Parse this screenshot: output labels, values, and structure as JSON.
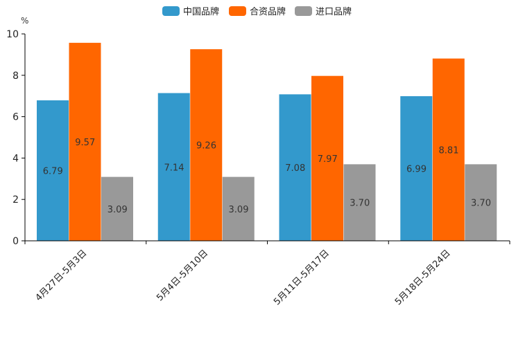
{
  "chart_data": {
    "type": "bar",
    "title": "",
    "xlabel": "",
    "ylabel": "%",
    "ylim": [
      0,
      10
    ],
    "yticks": [
      0,
      2,
      4,
      6,
      8,
      10
    ],
    "grid": false,
    "legend_position": "top-center",
    "categories": [
      "4月27日-5月3日",
      "5月4日-5月10日",
      "5月11日-5月17日",
      "5月18日-5月24日"
    ],
    "series": [
      {
        "name": "中国品牌",
        "color": "#3399cc",
        "values": [
          6.79,
          7.14,
          7.08,
          6.99
        ]
      },
      {
        "name": "合资品牌",
        "color": "#ff6600",
        "values": [
          9.57,
          9.26,
          7.97,
          8.81
        ]
      },
      {
        "name": "进口品牌",
        "color": "#999999",
        "values": [
          3.09,
          3.09,
          3.7,
          3.7
        ]
      }
    ]
  }
}
